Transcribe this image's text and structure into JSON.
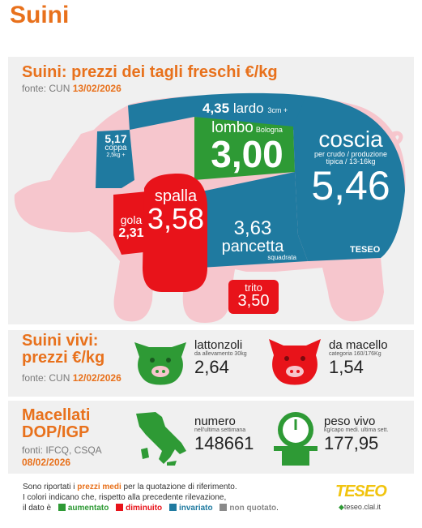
{
  "page_title": "Suini",
  "section1": {
    "title": "Suini: prezzi dei tagli freschi €/kg",
    "source_prefix": "fonte: CUN ",
    "source_date": "13/02/2026"
  },
  "cuts": {
    "lardo": {
      "value": "4,35",
      "name": "lardo",
      "note": "3cm +",
      "color": "#1f7aa0"
    },
    "coppa": {
      "value": "5,17",
      "name": "coppa",
      "note": "2,5kg +",
      "color": "#1f7aa0"
    },
    "lombo": {
      "value": "3,00",
      "name": "lombo",
      "note": "Bologna",
      "color": "#2e9a35"
    },
    "coscia": {
      "value": "5,46",
      "name": "coscia",
      "note1": "per crudo / produzione",
      "note2": "tipica / 13-16kg",
      "color": "#1f7aa0"
    },
    "gola": {
      "value": "2,31",
      "name": "gola",
      "color": "#e8131a"
    },
    "spalla": {
      "value": "3,58",
      "name": "spalla",
      "color": "#e8131a"
    },
    "pancetta": {
      "value": "3,63",
      "name": "pancetta",
      "note": "squadrata",
      "color": "#1f7aa0"
    },
    "trito": {
      "value": "3,50",
      "name": "trito",
      "color": "#e8131a"
    }
  },
  "section2": {
    "title1": "Suini vivi:",
    "title2": "prezzi €/kg",
    "source_prefix": "fonte: CUN ",
    "source_date": "12/02/2026",
    "lattonzoli": {
      "name": "lattonzoli",
      "note": "da allevamento 30kg",
      "value": "2,64"
    },
    "macello": {
      "name": "da macello",
      "note": "categoria 160/176Kg",
      "value": "1,54"
    }
  },
  "section3": {
    "title1": "Macellati",
    "title2": "DOP/IGP",
    "source": "fonti: IFCQ, CSQA",
    "date": "08/02/2026",
    "numero": {
      "name": "numero",
      "note": "nell'ultima settimana",
      "value": "148661"
    },
    "peso": {
      "name": "peso vivo",
      "note": "kg/capo medi. ultima sett.",
      "value": "177,95"
    }
  },
  "footer": {
    "line1a": "Sono riportati i ",
    "line1b": "prezzi medi",
    "line1c": " per la quotazione di riferimento.",
    "line2": "I colori indicano che, rispetto alla precedente rilevazione,",
    "line3": "il dato è",
    "legend": [
      {
        "label": "aumentato",
        "color": "#2e9a35"
      },
      {
        "label": "diminuito",
        "color": "#e8131a"
      },
      {
        "label": "invariato",
        "color": "#1f7aa0"
      },
      {
        "label": "non quotato",
        "color": "#8a8a8a"
      }
    ],
    "period": "."
  },
  "brand": {
    "map_logo": "TESEO",
    "logo": "TESEO",
    "url": "teseo.clal.it"
  }
}
